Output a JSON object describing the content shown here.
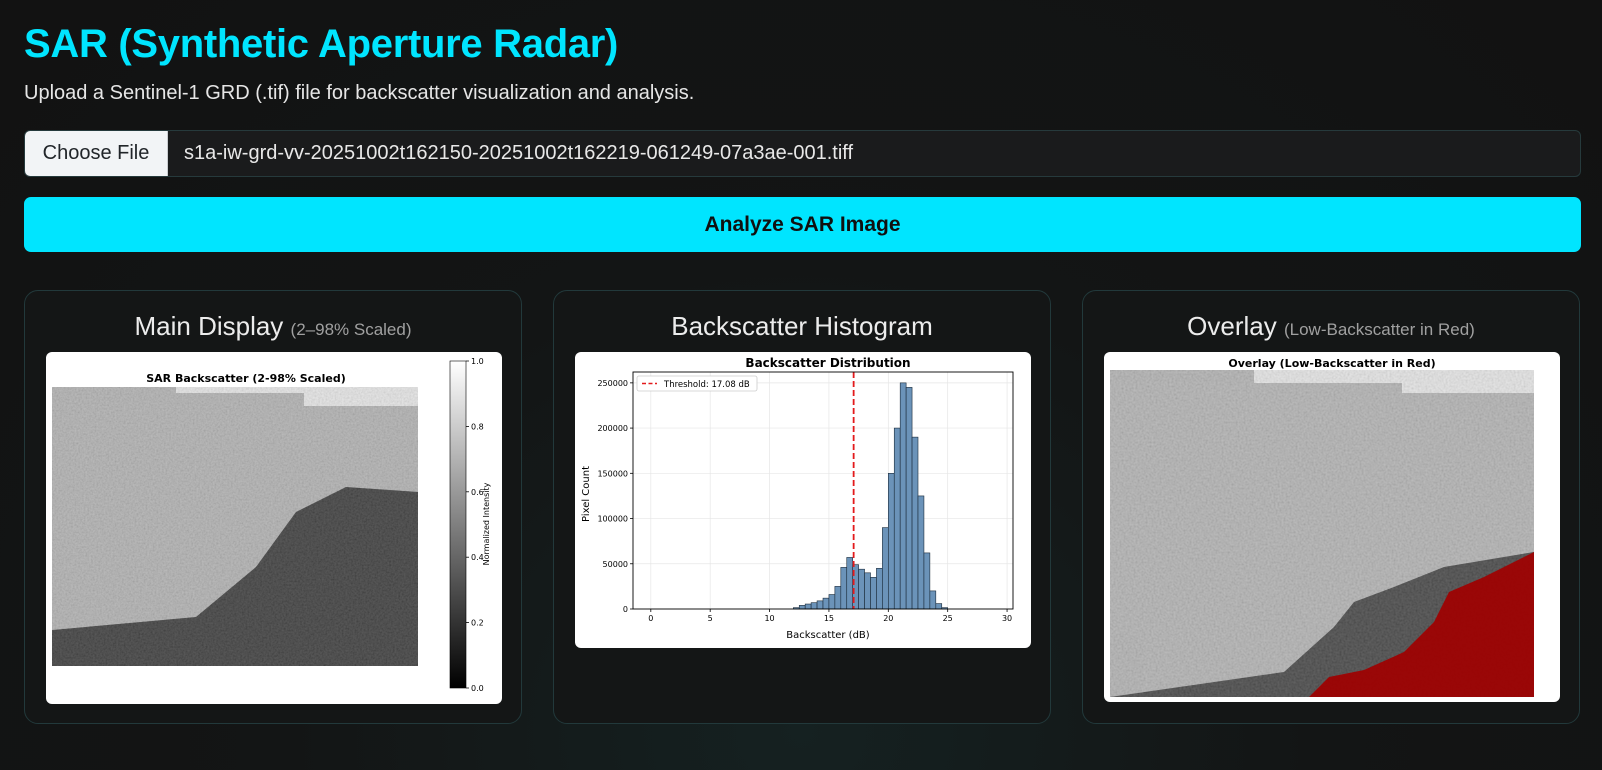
{
  "header": {
    "title": "SAR (Synthetic Aperture Radar)",
    "subtitle": "Upload a Sentinel-1 GRD (.tif) file for backscatter visualization and analysis."
  },
  "upload": {
    "choose_label": "Choose File",
    "file_name": "s1a-iw-grd-vv-20251002t162150-20251002t162219-061249-07a3ae-001.tiff"
  },
  "analyze_label": "Analyze SAR Image",
  "colors": {
    "accent": "#00e5ff",
    "histogram_bar": "#6b93b9",
    "threshold_line": "#e31a1c",
    "overlay_red": "#a00000"
  },
  "panels": {
    "main": {
      "title": "Main Display",
      "note": "(2–98% Scaled)",
      "figure_title": "SAR Backscatter (2-98% Scaled)",
      "colorbar_label": "Normalized Intensity",
      "colorbar_ticks": [
        "0.0",
        "0.2",
        "0.4",
        "0.6",
        "0.8",
        "1.0"
      ]
    },
    "histogram": {
      "title": "Backscatter Histogram"
    },
    "overlay": {
      "title": "Overlay",
      "note": "(Low-Backscatter in Red)",
      "figure_title": "Overlay (Low-Backscatter in Red)"
    }
  },
  "chart_data": {
    "type": "bar",
    "title": "Backscatter Distribution",
    "xlabel": "Backscatter (dB)",
    "ylabel": "Pixel Count",
    "xlim": [
      -1.5,
      30.5
    ],
    "ylim": [
      0,
      262000
    ],
    "xticks": [
      0,
      5,
      10,
      15,
      20,
      25,
      30
    ],
    "yticks": [
      0,
      50000,
      100000,
      150000,
      200000,
      250000
    ],
    "grid": true,
    "legend_position": "top-left",
    "threshold": {
      "value": 17.08,
      "label": "Threshold: 17.08 dB"
    },
    "bin_width": 0.5,
    "bins": [
      [
        12.0,
        1500
      ],
      [
        12.5,
        4000
      ],
      [
        13.0,
        5500
      ],
      [
        13.5,
        7000
      ],
      [
        14.0,
        9000
      ],
      [
        14.5,
        12000
      ],
      [
        15.0,
        16000
      ],
      [
        15.5,
        25000
      ],
      [
        16.0,
        46000
      ],
      [
        16.5,
        57000
      ],
      [
        17.0,
        49000
      ],
      [
        17.5,
        44000
      ],
      [
        18.0,
        40000
      ],
      [
        18.5,
        35000
      ],
      [
        19.0,
        45000
      ],
      [
        19.5,
        90000
      ],
      [
        20.0,
        150000
      ],
      [
        20.5,
        200000
      ],
      [
        21.0,
        250000
      ],
      [
        21.5,
        245000
      ],
      [
        22.0,
        190000
      ],
      [
        22.5,
        125000
      ],
      [
        23.0,
        62000
      ],
      [
        23.5,
        20000
      ],
      [
        24.0,
        6000
      ],
      [
        24.5,
        1500
      ]
    ]
  }
}
